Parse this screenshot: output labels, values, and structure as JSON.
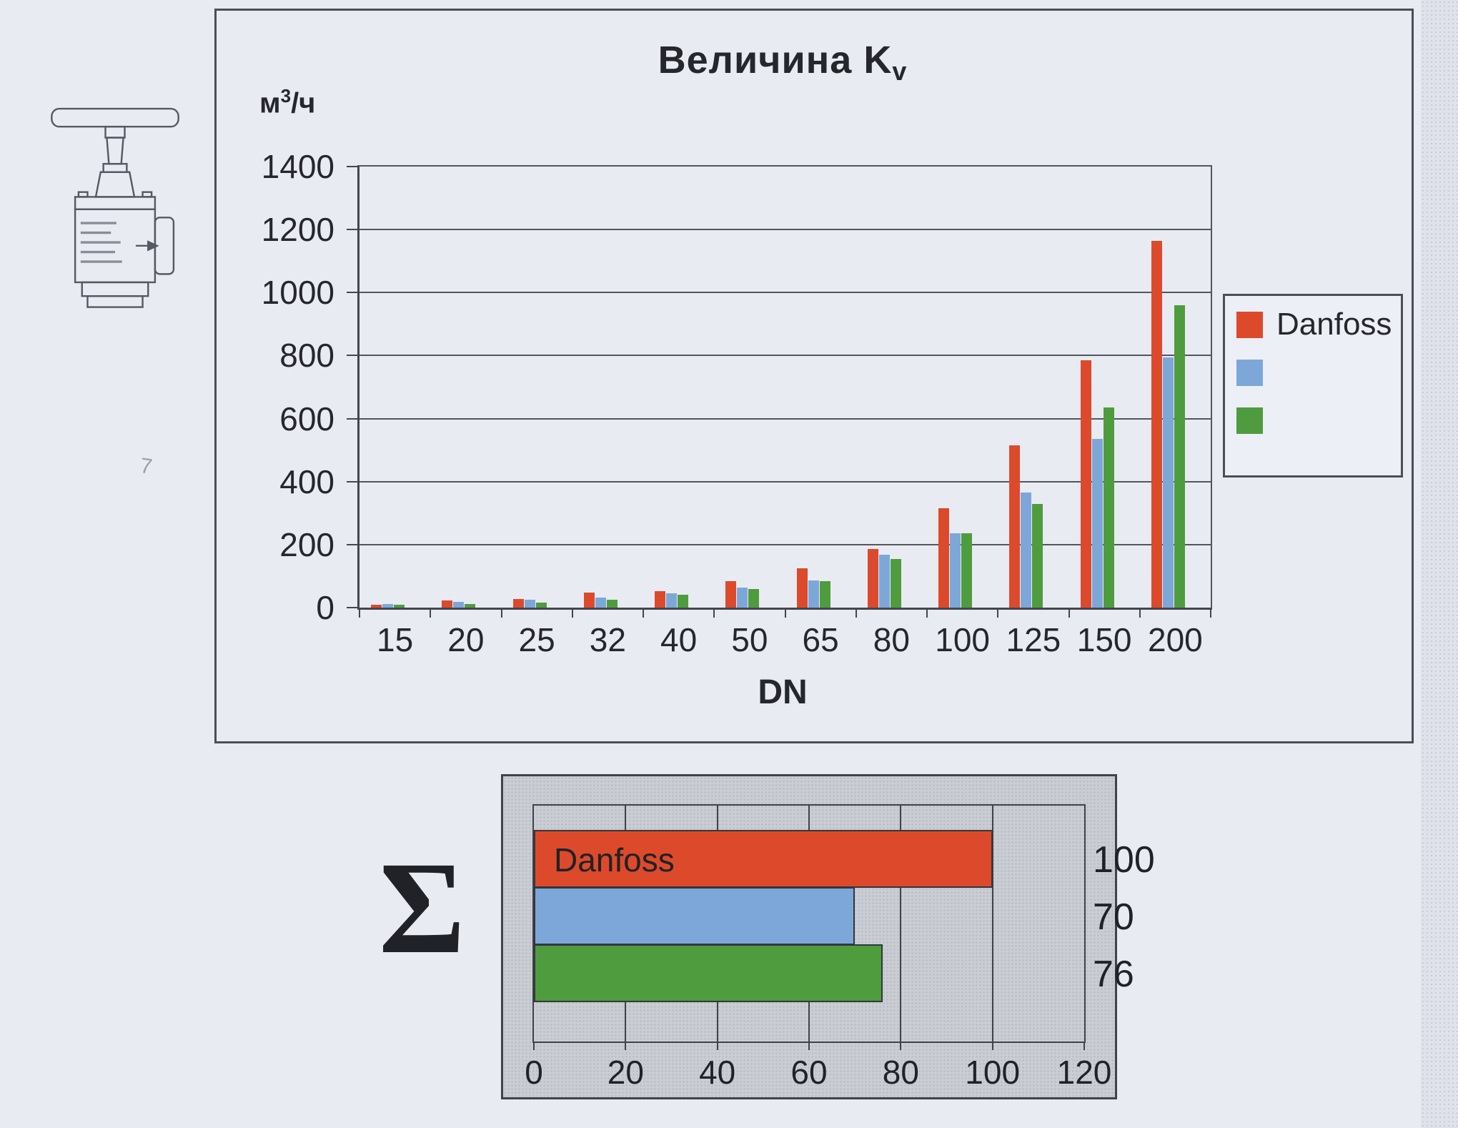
{
  "labels": {
    "title_main": "Величина K",
    "title_sub": "v",
    "y_unit_pre": "м",
    "y_unit_sup": "3",
    "y_unit_post": "/ч",
    "xlabel": "DN",
    "sigma": "Σ",
    "margin_mark": "7"
  },
  "legend": {
    "items": [
      {
        "label": "Danfoss",
        "color": "#dc4a2b"
      },
      {
        "label": "",
        "color": "#7da7d9"
      },
      {
        "label": "",
        "color": "#4f9c3e"
      }
    ]
  },
  "chart_data": [
    {
      "type": "bar",
      "title": "Величина Kv",
      "ylabel": "м3/ч",
      "xlabel": "DN",
      "categories": [
        "15",
        "20",
        "25",
        "32",
        "40",
        "50",
        "65",
        "80",
        "100",
        "125",
        "150",
        "200"
      ],
      "series": [
        {
          "name": "Danfoss",
          "color": "#dc4a2b",
          "values": [
            10,
            22,
            28,
            48,
            52,
            83,
            125,
            186,
            315,
            515,
            785,
            1165
          ]
        },
        {
          "name": "",
          "color": "#7da7d9",
          "values": [
            12,
            18,
            25,
            32,
            46,
            63,
            87,
            167,
            235,
            365,
            535,
            795
          ]
        },
        {
          "name": "",
          "color": "#4f9c3e",
          "values": [
            8,
            12,
            15,
            25,
            41,
            60,
            83,
            154,
            235,
            330,
            635,
            960
          ]
        }
      ],
      "ylim": [
        0,
        1400
      ],
      "ytick_step": 200,
      "grid": true,
      "legend_position": "right",
      "legend_entries": [
        "Danfoss",
        "",
        ""
      ]
    },
    {
      "type": "bar",
      "orientation": "horizontal",
      "title": "Σ",
      "bars": [
        {
          "label": "Danfoss",
          "value": 100,
          "color": "#dc4a2b"
        },
        {
          "label": "",
          "value": 70,
          "color": "#7da7d9"
        },
        {
          "label": "",
          "value": 76,
          "color": "#4f9c3e"
        }
      ],
      "value_labels": [
        100,
        70,
        76
      ],
      "xlim": [
        0,
        120
      ],
      "xtick_step": 20,
      "grid": true
    }
  ]
}
